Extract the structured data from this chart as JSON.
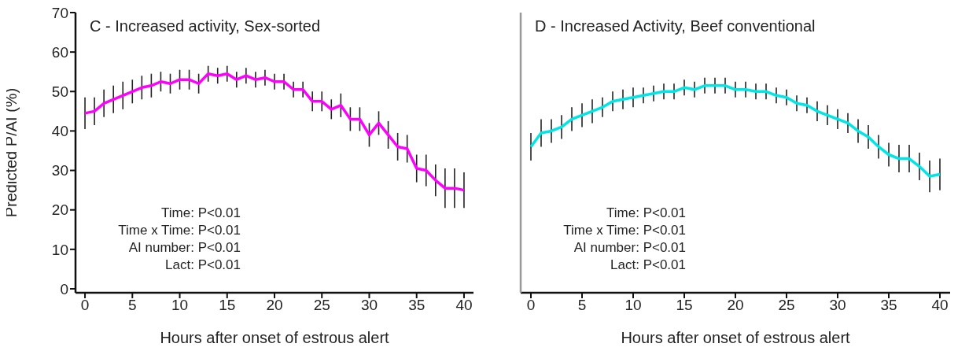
{
  "chart_data": [
    {
      "type": "line",
      "title": "C - Increased activity, Sex-sorted",
      "xlabel": "Hours after onset of estrous alert",
      "ylabel": "Predicted P/AI  (%)",
      "annotations": [
        "Time: P<0.01",
        "Time x Time: P<0.01",
        "AI number: P<0.01",
        "Lact: P<0.01"
      ],
      "x": [
        0,
        1,
        2,
        3,
        4,
        5,
        6,
        7,
        8,
        9,
        10,
        11,
        12,
        13,
        14,
        15,
        16,
        17,
        18,
        19,
        20,
        21,
        22,
        23,
        24,
        25,
        26,
        27,
        28,
        29,
        30,
        31,
        32,
        33,
        34,
        35,
        36,
        37,
        38,
        39,
        40
      ],
      "series": [
        {
          "color": "#ff00ff",
          "values": [
            44.5,
            45,
            47,
            48,
            49,
            50,
            51,
            51.5,
            52.5,
            52,
            53,
            53,
            52,
            54.5,
            54,
            54.5,
            53,
            54,
            53,
            53.5,
            52.5,
            52.5,
            50.5,
            50.5,
            47.5,
            47.5,
            45.5,
            46.5,
            43,
            43,
            39,
            42,
            39,
            36,
            35.5,
            30.5,
            30,
            27.5,
            25.5,
            25.5,
            25
          ],
          "errors": [
            4,
            3.5,
            3.5,
            3.5,
            3.5,
            3,
            3,
            3,
            2.5,
            2.5,
            2.5,
            2.5,
            2.5,
            2,
            2,
            2,
            2,
            2,
            2,
            2,
            2,
            2,
            2,
            2,
            2.5,
            2.5,
            2.5,
            3,
            3,
            3,
            3,
            3,
            3.5,
            3.5,
            3.5,
            3.5,
            4,
            4,
            5,
            5,
            4.5
          ]
        }
      ],
      "xlim": [
        -1,
        41
      ],
      "xticks": [
        0,
        5,
        10,
        15,
        20,
        25,
        30,
        35,
        40
      ],
      "ylim": [
        -1,
        70
      ],
      "yticks": [
        0,
        10,
        20,
        30,
        40,
        50,
        60,
        70
      ],
      "grid": false,
      "marker": "none",
      "line_style": "solid"
    },
    {
      "type": "line",
      "title": "D - Increased Activity, Beef conventional",
      "xlabel": "Hours after onset of estrous alert",
      "annotations": [
        "Time: P<0.01",
        "Time x Time: P<0.01",
        "AI number: P<0.01",
        "Lact: P<0.01"
      ],
      "x": [
        0,
        1,
        2,
        3,
        4,
        5,
        6,
        7,
        8,
        9,
        10,
        11,
        12,
        13,
        14,
        15,
        16,
        17,
        18,
        19,
        20,
        21,
        22,
        23,
        24,
        25,
        26,
        27,
        28,
        29,
        30,
        31,
        32,
        33,
        34,
        35,
        36,
        37,
        38,
        39,
        40
      ],
      "series": [
        {
          "color": "#00e5e5",
          "values": [
            36,
            39.5,
            40,
            41,
            43,
            44,
            45,
            46,
            47.5,
            48,
            48.5,
            49,
            49.5,
            50,
            50,
            51,
            50.5,
            51.5,
            51.5,
            51.5,
            50.5,
            50.5,
            50,
            50,
            49,
            48.5,
            47,
            46.5,
            45,
            44,
            43,
            42,
            40,
            38.5,
            36,
            34,
            33,
            33,
            31,
            28.5,
            29
          ],
          "errors": [
            3.5,
            3.5,
            3,
            3,
            3,
            3,
            3,
            2.5,
            2.5,
            2.5,
            2.5,
            2,
            2,
            2,
            2,
            2,
            2,
            2,
            2,
            2,
            2,
            2,
            2,
            2,
            2,
            2,
            2,
            2,
            2.5,
            2.5,
            2.5,
            2.5,
            3,
            3,
            3,
            3,
            3.5,
            3.5,
            3.5,
            4,
            4
          ]
        }
      ],
      "xlim": [
        -1,
        41
      ],
      "xticks": [
        0,
        5,
        10,
        15,
        20,
        25,
        30,
        35,
        40
      ],
      "ylim": [
        -1,
        70
      ],
      "yticks": [
        0,
        10,
        20,
        30,
        40,
        50,
        60,
        70
      ],
      "tick_labels": "x",
      "grid": false,
      "marker": "none",
      "line_style": "solid"
    }
  ]
}
